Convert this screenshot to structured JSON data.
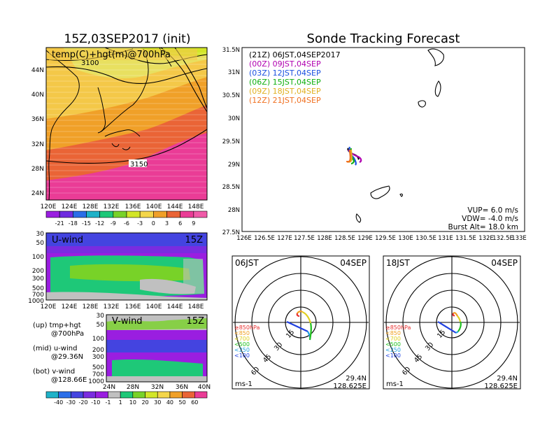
{
  "map_panel": {
    "title": "15Z,03SEP2017 (init)",
    "label": "temp(C)+hgt(m)@700hPa",
    "contour_labels": [
      "3100",
      "3150"
    ],
    "lat_ticks": [
      "44N",
      "40N",
      "36N",
      "32N",
      "28N",
      "24N"
    ],
    "lon_ticks": [
      "120E",
      "124E",
      "128E",
      "132E",
      "136E",
      "140E",
      "144E",
      "148E"
    ],
    "colorbar_labels": [
      "-21",
      "-18",
      "-15",
      "-12",
      "-9",
      "-6",
      "-3",
      "0",
      "3",
      "6",
      "9"
    ],
    "colorbar_colors": [
      "#9a1ee0",
      "#6f2ce0",
      "#2b6ee8",
      "#1fb2c8",
      "#1ec878",
      "#78d228",
      "#d2e628",
      "#f4d64a",
      "#f0a028",
      "#ea6436",
      "#ea3c96",
      "#f05aa8"
    ]
  },
  "u_panel": {
    "label": "U-wind",
    "time": "15Z",
    "y_ticks": [
      "30",
      "50",
      "100",
      "200",
      "300",
      "500",
      "700",
      "1000"
    ],
    "x_ticks": [
      "120E",
      "124E",
      "128E",
      "132E",
      "136E",
      "140E",
      "144E",
      "148E"
    ]
  },
  "v_panel": {
    "label": "V-wind",
    "time": "15Z",
    "y_ticks": [
      "30",
      "50",
      "100",
      "200",
      "300",
      "500",
      "700",
      "1000"
    ],
    "x_ticks": [
      "24N",
      "28N",
      "32N",
      "36N",
      "40N"
    ]
  },
  "notes": [
    {
      "a": "(up) tmp+hgt",
      "b": "@700hPa"
    },
    {
      "a": "(mid) u-wind",
      "b": "@29.36N"
    },
    {
      "a": "(bot) v-wind",
      "b": "@128.66E"
    }
  ],
  "wind_colorbar": {
    "labels": [
      "-40",
      "-30",
      "-20",
      "-10",
      "-1",
      "1",
      "10",
      "20",
      "30",
      "40",
      "50",
      "60"
    ],
    "colors": [
      "#1fb2c8",
      "#2b6ee8",
      "#4444e0",
      "#7a2ce0",
      "#9a1ee0",
      "#c0c0c0",
      "#1ec878",
      "#78d228",
      "#d2e628",
      "#f4d64a",
      "#f0a028",
      "#ea6436",
      "#ea3c96"
    ]
  },
  "track_panel": {
    "title": "Sonde Tracking Forecast",
    "legend": [
      {
        "text": "(21Z) 06JST,04SEP2017",
        "color": "#000000"
      },
      {
        "text": "(00Z) 09JST,04SEP",
        "color": "#b000b0"
      },
      {
        "text": "(03Z) 12JST,04SEP",
        "color": "#1a50e0"
      },
      {
        "text": "(06Z) 15JST,04SEP",
        "color": "#10b010"
      },
      {
        "text": "(09Z) 18JST,04SEP",
        "color": "#e0b020"
      },
      {
        "text": "(12Z) 21JST,04SEP",
        "color": "#f07020"
      }
    ],
    "lat_ticks": [
      "31.5N",
      "31N",
      "30.5N",
      "30N",
      "29.5N",
      "29N",
      "28.5N",
      "28N",
      "27.5N"
    ],
    "lon_ticks": [
      "126E",
      "126.5E",
      "127E",
      "127.5E",
      "128E",
      "128.5E",
      "129E",
      "129.5E",
      "130E",
      "130.5E",
      "131E",
      "131.5E",
      "132E",
      "132.5E",
      "133E"
    ],
    "params": [
      "VUP= 6.0 m/s",
      "VDW= -4.0 m/s",
      "Burst Alt= 18.0 km"
    ]
  },
  "polar_panels": [
    {
      "time": "06JST",
      "date": "04SEP",
      "lat": "29.4N",
      "lon": "128.625E",
      "unit": "ms-1",
      "speed_rings": [
        "15",
        "30",
        "45",
        "60"
      ],
      "levels": [
        {
          "t": "≥850hPa",
          "c": "#e83030"
        },
        {
          "t": "<850",
          "c": "#f0a020"
        },
        {
          "t": "<700",
          "c": "#e0d020"
        },
        {
          "t": "<500",
          "c": "#20c020"
        },
        {
          "t": "<250",
          "c": "#20a0e0"
        },
        {
          "t": "<100",
          "c": "#2040e0"
        }
      ]
    },
    {
      "time": "18JST",
      "date": "04SEP",
      "lat": "29.4N",
      "lon": "128.625E",
      "unit": "ms-1",
      "speed_rings": [
        "15",
        "30",
        "45",
        "60"
      ],
      "levels": [
        {
          "t": "≥850hPa",
          "c": "#e83030"
        },
        {
          "t": "<850",
          "c": "#f0a020"
        },
        {
          "t": "<700",
          "c": "#e0d020"
        },
        {
          "t": "<500",
          "c": "#20c020"
        },
        {
          "t": "<250",
          "c": "#20a0e0"
        },
        {
          "t": "<100",
          "c": "#2040e0"
        }
      ]
    }
  ]
}
